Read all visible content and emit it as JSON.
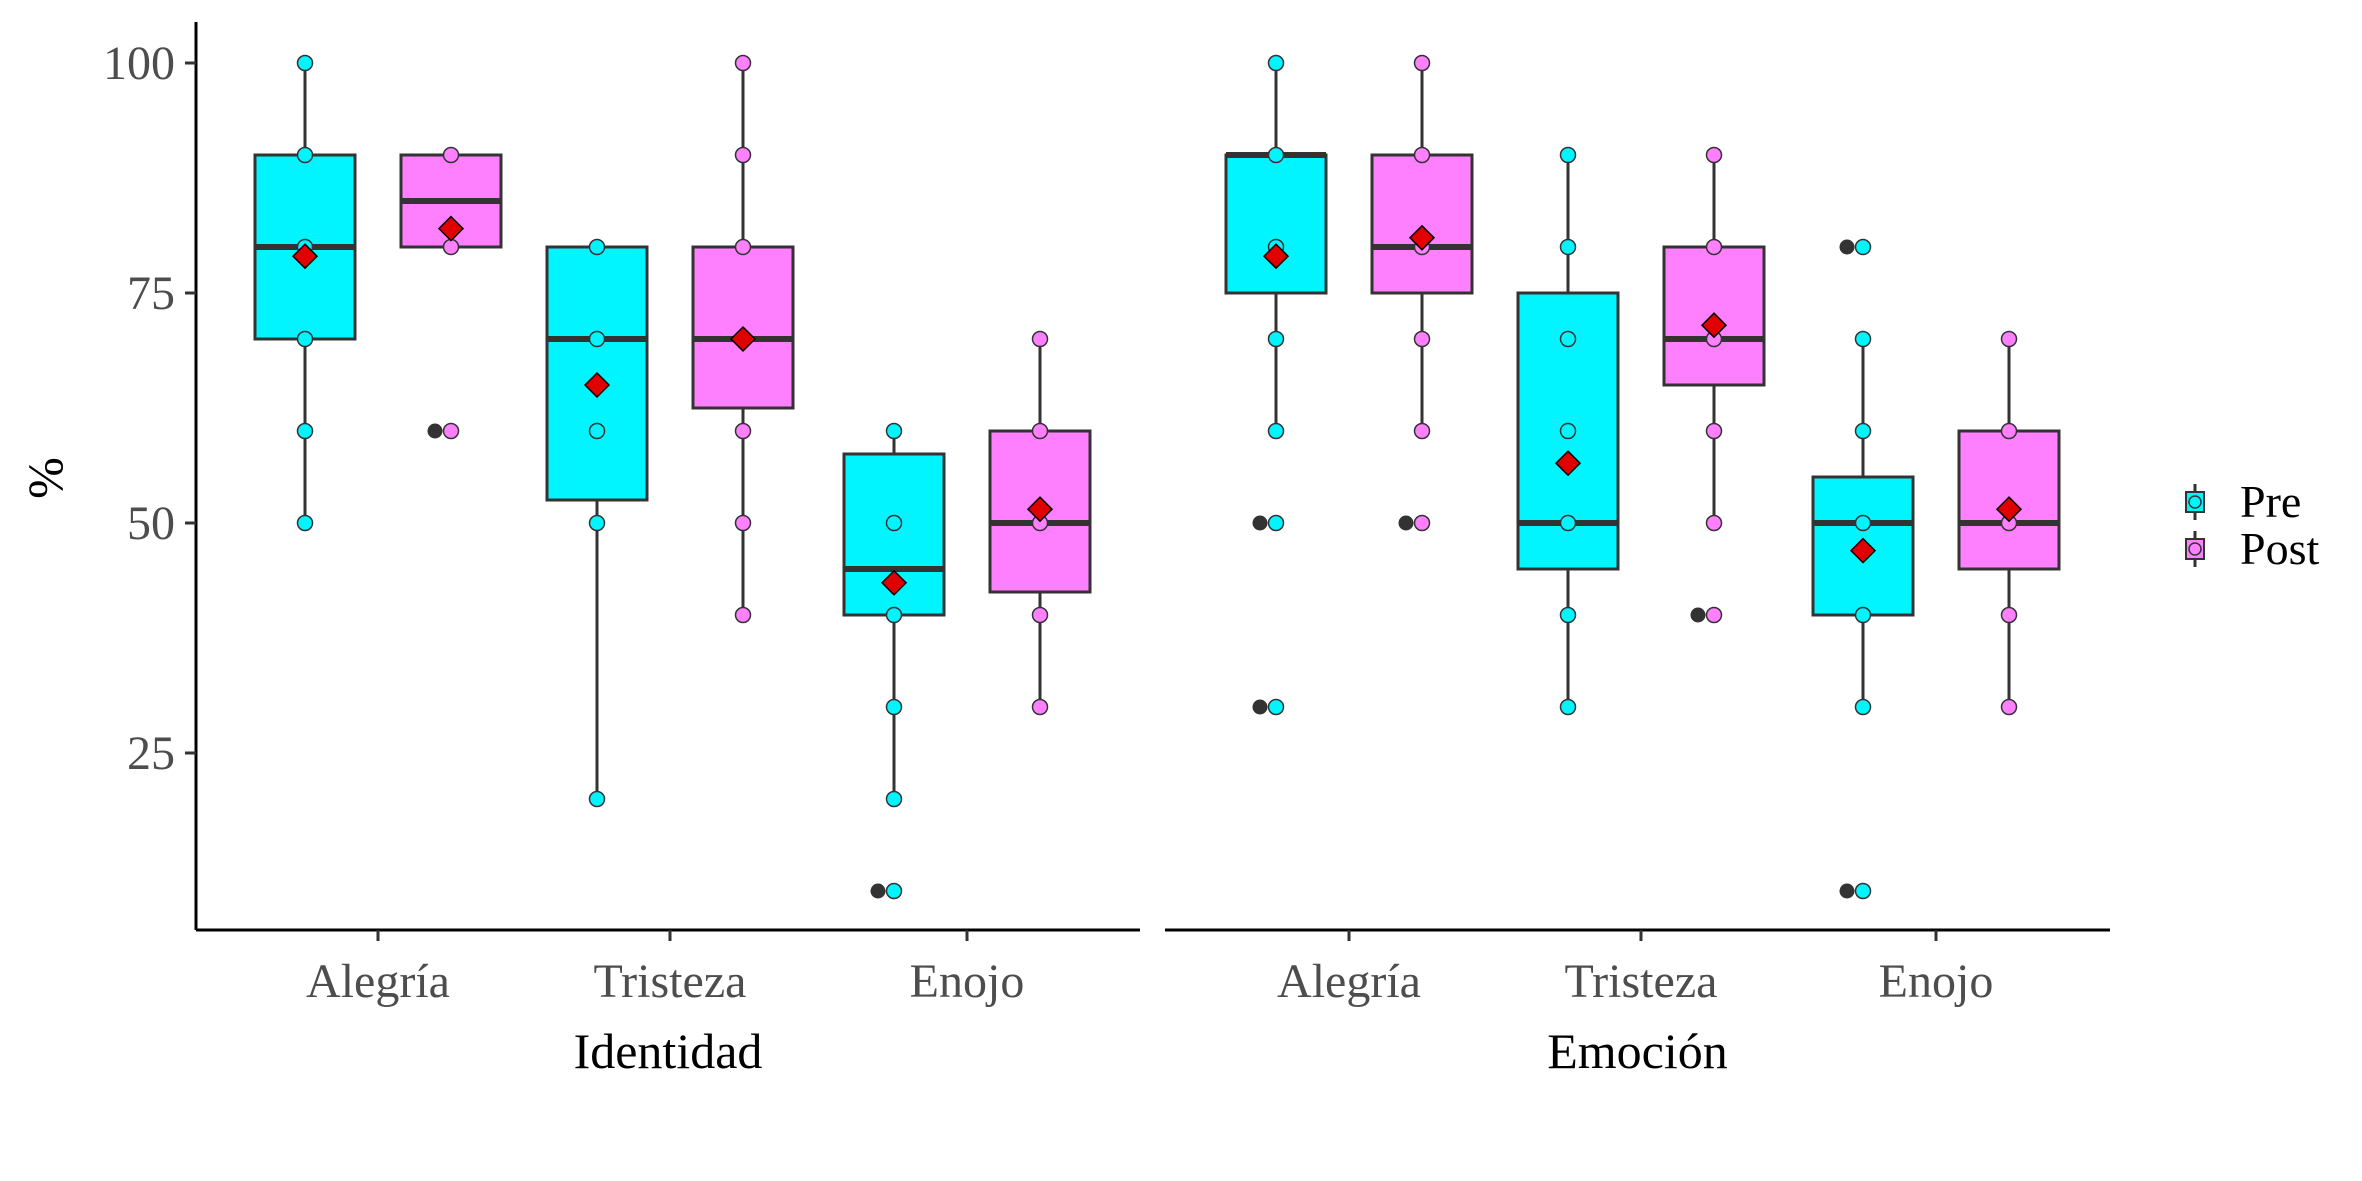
{
  "chart_data": {
    "type": "boxplot",
    "ylabel": "%",
    "ylim": [
      5,
      105
    ],
    "yticks": [
      25,
      50,
      75,
      100
    ],
    "grid": false,
    "legend": {
      "placement": "right",
      "entries": [
        {
          "name": "Pre",
          "color": "#00F5FF"
        },
        {
          "name": "Post",
          "color": "#FF80FF"
        }
      ]
    },
    "colors": {
      "pre": "#00F5FF",
      "post": "#FF80FF",
      "mean": "#E00000",
      "outlier": "#333333"
    },
    "panels": [
      {
        "xlabel": "Identidad",
        "categories": [
          "Alegría",
          "Tristeza",
          "Enojo"
        ],
        "groups": [
          {
            "category": "Alegría",
            "pre": {
              "q1": 70,
              "median": 80,
              "q3": 90,
              "whisker_low": 50,
              "whisker_high": 100,
              "mean": 79,
              "points": [
                100,
                90,
                80,
                70,
                60,
                50
              ],
              "outliers": []
            },
            "post": {
              "q1": 80,
              "median": 85,
              "q3": 90,
              "whisker_low": 80,
              "whisker_high": 90,
              "mean": 82,
              "points": [
                90,
                80,
                60
              ],
              "outliers": [
                60
              ]
            }
          },
          {
            "category": "Tristeza",
            "pre": {
              "q1": 52.5,
              "median": 70,
              "q3": 80,
              "whisker_low": 20,
              "whisker_high": 80,
              "mean": 65,
              "points": [
                80,
                70,
                60,
                50,
                20
              ],
              "outliers": []
            },
            "post": {
              "q1": 62.5,
              "median": 70,
              "q3": 80,
              "whisker_low": 40,
              "whisker_high": 100,
              "mean": 70,
              "points": [
                100,
                90,
                80,
                70,
                60,
                50,
                40
              ],
              "outliers": []
            }
          },
          {
            "category": "Enojo",
            "pre": {
              "q1": 40,
              "median": 45,
              "q3": 57.5,
              "whisker_low": 20,
              "whisker_high": 60,
              "mean": 43.5,
              "points": [
                60,
                50,
                40,
                30,
                20,
                10
              ],
              "outliers": [
                10
              ]
            },
            "post": {
              "q1": 42.5,
              "median": 50,
              "q3": 60,
              "whisker_low": 30,
              "whisker_high": 70,
              "mean": 51.5,
              "points": [
                70,
                60,
                50,
                40,
                30
              ],
              "outliers": []
            }
          }
        ]
      },
      {
        "xlabel": "Emoción",
        "categories": [
          "Alegría",
          "Tristeza",
          "Enojo"
        ],
        "groups": [
          {
            "category": "Alegría",
            "pre": {
              "q1": 75,
              "median": 90,
              "q3": 90,
              "whisker_low": 60,
              "whisker_high": 100,
              "mean": 79,
              "points": [
                100,
                90,
                80,
                70,
                60,
                50,
                30
              ],
              "outliers": [
                50,
                30
              ]
            },
            "post": {
              "q1": 75,
              "median": 80,
              "q3": 90,
              "whisker_low": 60,
              "whisker_high": 100,
              "mean": 81,
              "points": [
                100,
                90,
                80,
                70,
                60,
                50
              ],
              "outliers": [
                50
              ]
            }
          },
          {
            "category": "Tristeza",
            "pre": {
              "q1": 45,
              "median": 50,
              "q3": 75,
              "whisker_low": 30,
              "whisker_high": 90,
              "mean": 56.5,
              "points": [
                90,
                80,
                70,
                60,
                50,
                40,
                30
              ],
              "outliers": []
            },
            "post": {
              "q1": 65,
              "median": 70,
              "q3": 80,
              "whisker_low": 50,
              "whisker_high": 90,
              "mean": 71.5,
              "points": [
                90,
                80,
                70,
                60,
                50,
                40
              ],
              "outliers": [
                40
              ]
            }
          },
          {
            "category": "Enojo",
            "pre": {
              "q1": 40,
              "median": 50,
              "q3": 55,
              "whisker_low": 30,
              "whisker_high": 70,
              "mean": 47,
              "points": [
                80,
                70,
                60,
                50,
                40,
                30,
                10
              ],
              "outliers": [
                80,
                10
              ]
            },
            "post": {
              "q1": 45,
              "median": 50,
              "q3": 60,
              "whisker_low": 30,
              "whisker_high": 70,
              "mean": 51.5,
              "points": [
                70,
                60,
                50,
                40,
                30
              ],
              "outliers": []
            }
          }
        ]
      }
    ]
  }
}
